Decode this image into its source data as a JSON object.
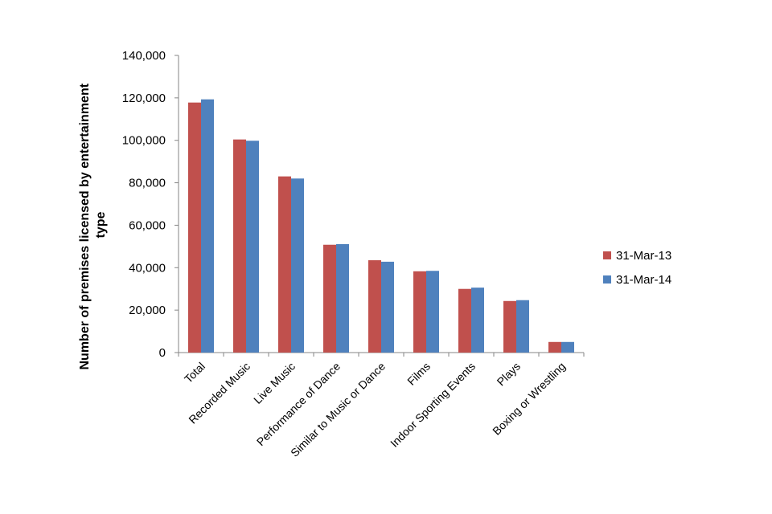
{
  "chart_data": {
    "type": "bar",
    "title": "",
    "xlabel": "",
    "ylabel_line1": "Number of premises licensed by entertainment",
    "ylabel_line2": "type",
    "ylim": [
      0,
      140000
    ],
    "yticks": [
      0,
      20000,
      40000,
      60000,
      80000,
      100000,
      120000,
      140000
    ],
    "ytick_labels": [
      "0",
      "20,000",
      "40,000",
      "60,000",
      "80,000",
      "100,000",
      "120,000",
      "140,000"
    ],
    "grid": false,
    "legend_position": "right",
    "categories": [
      "Total",
      "Recorded Music",
      "Live Music",
      "Performance of Dance",
      "Similar to Music or Dance",
      "Films",
      "Indoor Sporting Events",
      "Plays",
      "Boxing or Wrestling"
    ],
    "series": [
      {
        "name": "31-Mar-13",
        "color": "#C0504D",
        "values": [
          117800,
          100400,
          83000,
          50800,
          43500,
          38300,
          30000,
          24300,
          5000
        ]
      },
      {
        "name": "31-Mar-14",
        "color": "#4F81BD",
        "values": [
          119300,
          99800,
          82000,
          51100,
          42800,
          38500,
          30600,
          24700,
          5000
        ]
      }
    ]
  }
}
